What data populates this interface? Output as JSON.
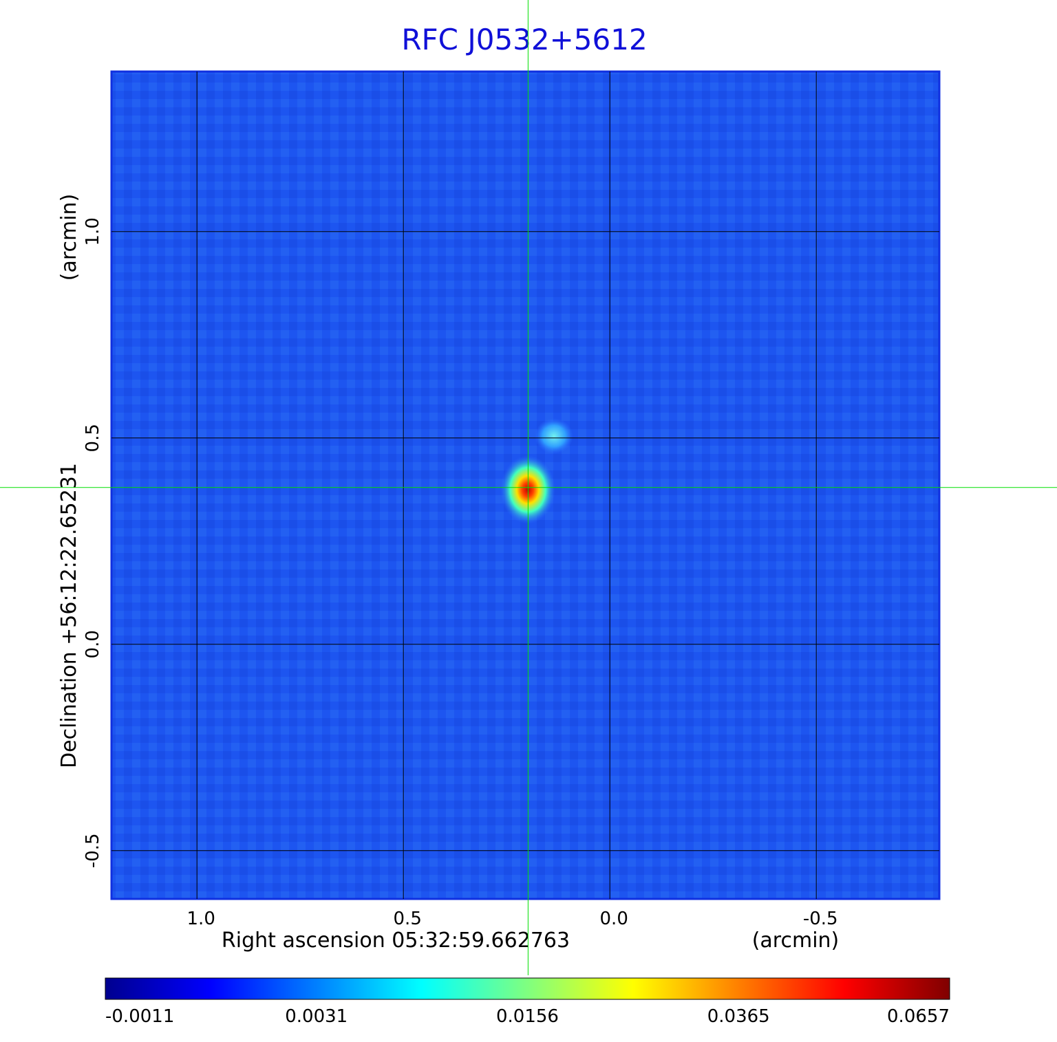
{
  "chart_data": {
    "type": "image",
    "title": "RFC J0532+5612",
    "xlabel": "Right ascension  05:32:59.662763",
    "xunit": "(arcmin)",
    "ylabel": "Declination  +56:12:22.65231",
    "yunit": "(arcmin)",
    "xlim": [
      1.207,
      -0.798
    ],
    "ylim": [
      -0.617,
      1.388
    ],
    "xticks": [
      {
        "value": 1,
        "label": "1.0"
      },
      0.5,
      {
        "value": 0,
        "label": "0.0"
      },
      -0.5
    ],
    "yticks": [
      -0.5,
      {
        "value": 0,
        "label": "0.0"
      },
      0.5,
      {
        "value": 1,
        "label": "1.0"
      }
    ],
    "grid": true,
    "crosshair": [
      0.198,
      0.38
    ],
    "colorbar_ticks": [
      -0.0011,
      0.0031,
      0.0156,
      0.0365,
      0.0657
    ]
  }
}
